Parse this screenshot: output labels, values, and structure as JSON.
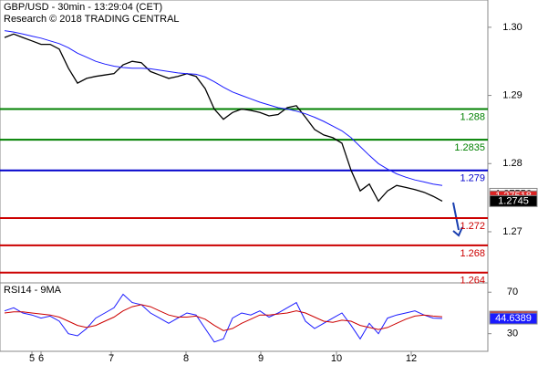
{
  "header": {
    "title": "GBP/USD - 30min - 13:29:04 (CET)",
    "subtitle": "Research © 2018 TRADING CENTRAL"
  },
  "chart_data": [
    {
      "type": "line",
      "xlim": [
        -0.5,
        53
      ],
      "ylim": [
        1.2625,
        1.304
      ],
      "yticks": [
        1.27,
        1.28,
        1.29,
        {
          "value": 1.3,
          "label": "1.30"
        }
      ],
      "x": [
        0,
        1,
        2,
        3,
        4,
        5,
        6,
        7,
        8,
        9,
        10,
        11,
        12,
        13,
        14,
        15,
        16,
        17,
        18,
        19,
        20,
        21,
        22,
        23,
        24,
        25,
        26,
        27,
        28,
        29,
        30,
        31,
        32,
        33,
        34,
        35,
        36,
        37,
        38,
        39,
        40,
        41,
        42,
        43,
        44,
        45,
        46,
        47,
        48
      ],
      "series": [
        {
          "color": "#000000",
          "values": [
            1.2985,
            1.299,
            1.2985,
            1.298,
            1.2975,
            1.2975,
            1.2968,
            1.294,
            1.2918,
            1.2925,
            1.2928,
            1.293,
            1.2932,
            1.2945,
            1.295,
            1.2948,
            1.2935,
            1.293,
            1.2925,
            1.2928,
            1.2932,
            1.2928,
            1.291,
            1.288,
            1.2865,
            1.2875,
            1.288,
            1.2878,
            1.2875,
            1.287,
            1.2872,
            1.2882,
            1.2885,
            1.2868,
            1.285,
            1.2842,
            1.2838,
            1.283,
            1.279,
            1.276,
            1.277,
            1.2745,
            1.276,
            1.2768,
            1.2765,
            1.2762,
            1.2758,
            1.2752,
            1.2745
          ]
        },
        {
          "color": "#1a1aff",
          "values": [
            1.2995,
            1.2993,
            1.299,
            1.2987,
            1.2984,
            1.298,
            1.2976,
            1.297,
            1.2962,
            1.2956,
            1.295,
            1.2946,
            1.2943,
            1.2941,
            1.294,
            1.294,
            1.2939,
            1.2937,
            1.2935,
            1.2933,
            1.2932,
            1.2931,
            1.2927,
            1.292,
            1.2912,
            1.2905,
            1.29,
            1.2895,
            1.289,
            1.2886,
            1.2882,
            1.288,
            1.2877,
            1.2873,
            1.2868,
            1.2862,
            1.2855,
            1.2848,
            1.2838,
            1.2825,
            1.2812,
            1.28,
            1.2792,
            1.2785,
            1.278,
            1.2776,
            1.2773,
            1.277,
            1.2768
          ]
        }
      ],
      "levels": [
        {
          "value": 1.288,
          "color": "#008000"
        },
        {
          "value": 1.2835,
          "color": "#008000"
        },
        {
          "value": 1.279,
          "color": "#0000cc"
        },
        {
          "value": 1.272,
          "color": "#cc0000"
        },
        {
          "value": 1.268,
          "color": "#cc0000"
        },
        {
          "value": 1.264,
          "color": "#cc0000"
        }
      ],
      "tags": [
        {
          "value": 1.27556,
          "color": "#ffffff",
          "text_color": "#000000"
        },
        {
          "value": 1.27518,
          "color": "#dd2222",
          "text_color": "#ffffff"
        },
        {
          "value": 1.2745,
          "color": "#000000",
          "text_color": "#ffffff"
        }
      ]
    },
    {
      "type": "line",
      "title": "RSI14 - 9MA",
      "xlim": [
        -0.5,
        53
      ],
      "ylim": [
        13,
        79
      ],
      "yticks": [
        30,
        70
      ],
      "xticks": [
        {
          "value": 3,
          "label": "5"
        },
        {
          "value": 4,
          "label": "6"
        },
        {
          "value": 11.7,
          "label": "7"
        },
        {
          "value": 19.9,
          "label": "8"
        },
        {
          "value": 28.1,
          "label": "9"
        },
        {
          "value": 36.4,
          "label": "10"
        },
        {
          "value": 44.6,
          "label": "12"
        }
      ],
      "x": [
        0,
        1,
        2,
        3,
        4,
        5,
        6,
        7,
        8,
        9,
        10,
        11,
        12,
        13,
        14,
        15,
        16,
        17,
        18,
        19,
        20,
        21,
        22,
        23,
        24,
        25,
        26,
        27,
        28,
        29,
        30,
        31,
        32,
        33,
        34,
        35,
        36,
        37,
        38,
        39,
        40,
        41,
        42,
        43,
        44,
        45,
        46,
        47,
        48
      ],
      "series": [
        {
          "color": "#1a1aff",
          "values": [
            52,
            55,
            50,
            48,
            45,
            47,
            42,
            30,
            28,
            35,
            45,
            50,
            55,
            68,
            60,
            58,
            50,
            45,
            40,
            45,
            50,
            48,
            35,
            22,
            25,
            45,
            50,
            48,
            52,
            46,
            50,
            55,
            60,
            42,
            35,
            40,
            45,
            50,
            38,
            25,
            40,
            30,
            45,
            48,
            50,
            52,
            48,
            45,
            44.6389
          ]
        },
        {
          "color": "#cc0000",
          "values": [
            50,
            51,
            51,
            50,
            49,
            48,
            46,
            42,
            38,
            36,
            38,
            42,
            46,
            52,
            56,
            58,
            56,
            52,
            48,
            46,
            46,
            47,
            44,
            38,
            33,
            35,
            40,
            44,
            48,
            48,
            49,
            50,
            52,
            50,
            46,
            42,
            41,
            43,
            42,
            38,
            36,
            34,
            36,
            40,
            44,
            47,
            48,
            47,
            46.3803
          ]
        }
      ],
      "tags": [
        {
          "value": 46.3803,
          "color": "#dd2222",
          "text_color": "#ffffff"
        },
        {
          "value": 44.6389,
          "color": "#1a1aff",
          "text_color": "#ffffff"
        }
      ]
    }
  ]
}
